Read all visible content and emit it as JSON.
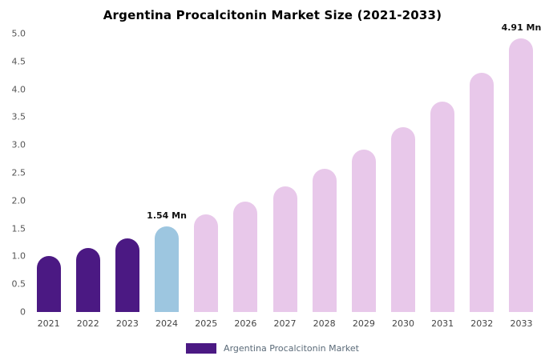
{
  "chart_data": {
    "type": "bar",
    "title": "Argentina Procalcitonin Market Size (2021-2033)",
    "xlabel": "",
    "ylabel": "",
    "categories": [
      "2021",
      "2022",
      "2023",
      "2024",
      "2025",
      "2026",
      "2027",
      "2028",
      "2029",
      "2030",
      "2031",
      "2032",
      "2033"
    ],
    "values": [
      1.0,
      1.15,
      1.32,
      1.54,
      1.75,
      1.99,
      2.26,
      2.57,
      2.92,
      3.32,
      3.78,
      4.3,
      4.91
    ],
    "ylim": [
      0,
      5.0
    ],
    "yticks": [
      "5.0",
      "4.5",
      "4.0",
      "3.5",
      "3.0",
      "2.5",
      "2.0",
      "1.5",
      "1.0",
      "0.5",
      "0"
    ],
    "grid": false,
    "bar_colors": [
      "#4B1983",
      "#4B1983",
      "#4B1983",
      "#9DC6E0",
      "#E8C8EA",
      "#E8C8EA",
      "#E8C8EA",
      "#E8C8EA",
      "#E8C8EA",
      "#E8C8EA",
      "#E8C8EA",
      "#E8C8EA",
      "#E8C8EA"
    ],
    "annotations": [
      {
        "index": 3,
        "text": "1.54 Mn"
      },
      {
        "index": 12,
        "text": "4.91 Mn"
      }
    ],
    "legend": {
      "position": "bottom",
      "label": "Argentina Procalcitonin Market",
      "swatch_color": "#4B1983"
    }
  },
  "colors": {
    "historical_bar": "#4B1983",
    "current_year_bar": "#9DC6E0",
    "forecast_bar": "#E8C8EA",
    "background": "#FFFFFF"
  }
}
